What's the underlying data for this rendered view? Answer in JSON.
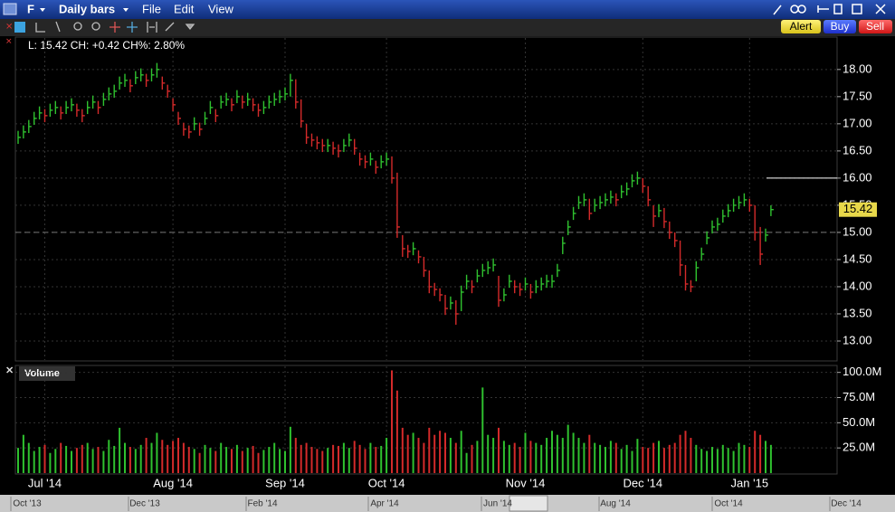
{
  "window": {
    "symbol": "F",
    "period": "Daily bars",
    "menu": [
      "File",
      "Edit",
      "View"
    ],
    "buttons": [
      "Alert",
      "Buy",
      "Sell"
    ]
  },
  "info": "L: 15.42 CH: +0.42 CH%: 2.80%",
  "chart_data": [
    {
      "type": "hlc",
      "up_color": "#2fc12f",
      "down_color": "#d42a2a",
      "grid": true,
      "reference_line": 15,
      "level_line": 16,
      "ylim": [
        12.65,
        18.58
      ],
      "yticks": [
        {
          "value": 13,
          "label": "13.00"
        },
        {
          "value": 13.5,
          "label": "13.50"
        },
        {
          "value": 14,
          "label": "14.00"
        },
        {
          "value": 14.5,
          "label": "14.50"
        },
        {
          "value": 15,
          "label": "15.00"
        },
        {
          "value": 15.5,
          "label": "15.50"
        },
        {
          "value": 16,
          "label": "16.00"
        },
        {
          "value": 16.5,
          "label": "16.50"
        },
        {
          "value": 17,
          "label": "17.00"
        },
        {
          "value": 17.5,
          "label": "17.50"
        },
        {
          "value": 18,
          "label": "18.00"
        }
      ],
      "high": [
        16.87,
        16.97,
        17.07,
        17.22,
        17.32,
        17.27,
        17.37,
        17.42,
        17.32,
        17.42,
        17.47,
        17.37,
        17.27,
        17.42,
        17.52,
        17.42,
        17.57,
        17.67,
        17.72,
        17.87,
        17.92,
        17.82,
        17.97,
        18.02,
        17.92,
        18.02,
        18.12,
        17.87,
        17.72,
        17.47,
        17.22,
        17.02,
        16.97,
        17.12,
        17.02,
        17.22,
        17.42,
        17.27,
        17.52,
        17.57,
        17.47,
        17.62,
        17.52,
        17.57,
        17.47,
        17.37,
        17.42,
        17.52,
        17.57,
        17.62,
        17.67,
        17.92,
        17.82,
        17.45,
        17.0,
        16.82,
        16.77,
        16.72,
        16.72,
        16.67,
        16.62,
        16.72,
        16.82,
        16.72,
        16.47,
        16.42,
        16.47,
        16.32,
        16.42,
        16.47,
        16.4,
        16.1,
        14.95,
        14.77,
        14.82,
        14.67,
        14.55,
        14.3,
        14.07,
        13.97,
        13.85,
        13.82,
        13.75,
        14.02,
        14.22,
        14.12,
        14.32,
        14.42,
        14.47,
        14.52,
        14.2,
        13.97,
        14.22,
        14.12,
        14.07,
        14.17,
        14.05,
        14.12,
        14.17,
        14.22,
        14.22,
        14.42,
        14.92,
        15.22,
        15.47,
        15.67,
        15.72,
        15.62,
        15.62,
        15.67,
        15.72,
        15.77,
        15.72,
        15.87,
        15.92,
        16.07,
        16.12,
        16.0,
        15.85,
        15.5,
        15.52,
        15.45,
        15.2,
        15.0,
        14.85,
        14.4,
        14.12,
        14.47,
        14.72,
        15.02,
        15.22,
        15.27,
        15.42,
        15.52,
        15.62,
        15.67,
        15.72,
        15.62,
        15.5,
        15.1,
        15.07,
        15.5
      ],
      "low": [
        16.63,
        16.73,
        16.83,
        16.98,
        17.08,
        17.03,
        17.13,
        17.18,
        17.08,
        17.18,
        17.23,
        17.13,
        17.03,
        17.18,
        17.28,
        17.18,
        17.33,
        17.43,
        17.48,
        17.63,
        17.68,
        17.58,
        17.73,
        17.78,
        17.68,
        17.78,
        17.85,
        17.63,
        17.48,
        17.23,
        16.98,
        16.78,
        16.73,
        16.88,
        16.78,
        16.98,
        17.18,
        17.03,
        17.28,
        17.33,
        17.23,
        17.38,
        17.28,
        17.33,
        17.23,
        17.13,
        17.18,
        17.28,
        17.33,
        17.38,
        17.43,
        17.5,
        17.28,
        16.93,
        16.63,
        16.58,
        16.53,
        16.48,
        16.48,
        16.43,
        16.38,
        16.48,
        16.58,
        16.43,
        16.23,
        16.18,
        16.23,
        16.08,
        16.18,
        16.23,
        15.9,
        14.9,
        14.55,
        14.53,
        14.58,
        14.43,
        14.18,
        13.88,
        13.83,
        13.73,
        13.48,
        13.58,
        13.3,
        13.55,
        13.95,
        13.88,
        14.08,
        14.18,
        14.23,
        14.28,
        13.63,
        13.73,
        13.98,
        13.88,
        13.83,
        13.93,
        13.78,
        13.88,
        13.93,
        13.98,
        13.98,
        14.18,
        14.6,
        14.95,
        15.23,
        15.43,
        15.48,
        15.23,
        15.38,
        15.43,
        15.48,
        15.53,
        15.48,
        15.63,
        15.68,
        15.83,
        15.88,
        15.73,
        15.48,
        15.1,
        15.28,
        15.08,
        14.88,
        14.73,
        14.2,
        13.93,
        13.9,
        14.1,
        14.48,
        14.78,
        14.98,
        15.03,
        15.18,
        15.28,
        15.38,
        15.43,
        15.48,
        15.38,
        14.85,
        14.4,
        14.83,
        15.3
      ],
      "close": [
        16.75,
        16.85,
        16.95,
        17.1,
        17.2,
        17.15,
        17.25,
        17.3,
        17.2,
        17.3,
        17.35,
        17.25,
        17.15,
        17.3,
        17.4,
        17.3,
        17.45,
        17.55,
        17.6,
        17.75,
        17.8,
        17.7,
        17.85,
        17.9,
        17.8,
        17.9,
        18.0,
        17.75,
        17.6,
        17.35,
        17.1,
        16.9,
        16.85,
        17.0,
        16.9,
        17.1,
        17.3,
        17.15,
        17.4,
        17.45,
        17.35,
        17.5,
        17.4,
        17.45,
        17.35,
        17.25,
        17.3,
        17.4,
        17.45,
        17.5,
        17.55,
        17.8,
        17.4,
        17.05,
        16.75,
        16.7,
        16.65,
        16.6,
        16.6,
        16.55,
        16.5,
        16.6,
        16.7,
        16.55,
        16.35,
        16.3,
        16.35,
        16.2,
        16.3,
        16.35,
        16.0,
        15.1,
        14.7,
        14.65,
        14.7,
        14.55,
        14.3,
        14.0,
        13.95,
        13.85,
        13.6,
        13.7,
        13.5,
        13.9,
        14.1,
        14.0,
        14.2,
        14.3,
        14.35,
        14.4,
        13.75,
        13.85,
        14.1,
        14.0,
        13.95,
        14.05,
        13.9,
        14.0,
        14.05,
        14.1,
        14.1,
        14.3,
        14.8,
        15.1,
        15.35,
        15.55,
        15.6,
        15.35,
        15.5,
        15.55,
        15.6,
        15.65,
        15.6,
        15.75,
        15.8,
        15.95,
        16.0,
        15.85,
        15.6,
        15.3,
        15.4,
        15.2,
        15.0,
        14.85,
        14.4,
        14.05,
        14.0,
        14.35,
        14.6,
        14.9,
        15.1,
        15.15,
        15.3,
        15.4,
        15.5,
        15.55,
        15.6,
        15.5,
        15.0,
        14.6,
        14.95,
        15.42
      ]
    },
    {
      "type": "bar",
      "title": "Volume",
      "grid": true,
      "ylim": [
        0,
        106000000.0
      ],
      "yticks": [
        {
          "value": 25000000.0,
          "label": "25.0M"
        },
        {
          "value": 50000000.0,
          "label": "50.0M"
        },
        {
          "value": 75000000.0,
          "label": "75.0M"
        },
        {
          "value": 100000000.0,
          "label": "100.0M"
        }
      ],
      "categories": [
        null,
        null,
        null,
        null,
        null,
        "Jul '14",
        null,
        null,
        null,
        null,
        null,
        null,
        null,
        null,
        null,
        null,
        null,
        null,
        null,
        null,
        null,
        null,
        null,
        null,
        null,
        null,
        null,
        null,
        null,
        "Aug '14",
        null,
        null,
        null,
        null,
        null,
        null,
        null,
        null,
        null,
        null,
        null,
        null,
        null,
        null,
        null,
        null,
        null,
        null,
        null,
        null,
        "Sep '14",
        null,
        null,
        null,
        null,
        null,
        null,
        null,
        null,
        null,
        null,
        null,
        null,
        null,
        null,
        null,
        null,
        null,
        null,
        "Oct '14",
        null,
        null,
        null,
        null,
        null,
        null,
        null,
        null,
        null,
        null,
        null,
        null,
        null,
        null,
        null,
        null,
        null,
        null,
        null,
        null,
        null,
        null,
        null,
        null,
        null,
        "Nov '14",
        null,
        null,
        null,
        null,
        null,
        null,
        null,
        null,
        null,
        null,
        null,
        null,
        null,
        null,
        null,
        null,
        null,
        null,
        null,
        null,
        null,
        "Dec '14",
        null,
        null,
        null,
        null,
        null,
        null,
        null,
        null,
        null,
        null,
        null,
        null,
        null,
        null,
        null,
        null,
        null,
        null,
        null,
        "Jan '15",
        null,
        null,
        null,
        null
      ],
      "values": [
        25000000.0,
        38000000.0,
        30000000.0,
        22000000.0,
        26000000.0,
        28000000.0,
        20000000.0,
        24000000.0,
        30000000.0,
        27000000.0,
        22000000.0,
        25000000.0,
        28000000.0,
        30000000.0,
        24000000.0,
        26000000.0,
        22000000.0,
        33000000.0,
        27000000.0,
        45000000.0,
        30000000.0,
        26000000.0,
        24000000.0,
        28000000.0,
        35000000.0,
        30000000.0,
        40000000.0,
        33000000.0,
        28000000.0,
        32000000.0,
        35000000.0,
        30000000.0,
        26000000.0,
        24000000.0,
        20000000.0,
        28000000.0,
        25000000.0,
        22000000.0,
        30000000.0,
        26000000.0,
        24000000.0,
        28000000.0,
        22000000.0,
        25000000.0,
        27000000.0,
        20000000.0,
        23000000.0,
        26000000.0,
        30000000.0,
        24000000.0,
        22000000.0,
        46000000.0,
        35000000.0,
        28000000.0,
        30000000.0,
        26000000.0,
        24000000.0,
        22000000.0,
        25000000.0,
        28000000.0,
        27000000.0,
        30000000.0,
        25000000.0,
        32000000.0,
        28000000.0,
        24000000.0,
        30000000.0,
        26000000.0,
        27000000.0,
        35000000.0,
        102000000.0,
        82000000.0,
        45000000.0,
        38000000.0,
        40000000.0,
        35000000.0,
        30000000.0,
        45000000.0,
        38000000.0,
        42000000.0,
        40000000.0,
        35000000.0,
        30000000.0,
        42000000.0,
        20000000.0,
        28000000.0,
        32000000.0,
        85000000.0,
        38000000.0,
        35000000.0,
        45000000.0,
        32000000.0,
        28000000.0,
        30000000.0,
        26000000.0,
        40000000.0,
        32000000.0,
        30000000.0,
        28000000.0,
        35000000.0,
        42000000.0,
        38000000.0,
        35000000.0,
        48000000.0,
        40000000.0,
        35000000.0,
        30000000.0,
        38000000.0,
        30000000.0,
        28000000.0,
        26000000.0,
        32000000.0,
        30000000.0,
        24000000.0,
        28000000.0,
        22000000.0,
        34000000.0,
        26000000.0,
        25000000.0,
        30000000.0,
        32000000.0,
        25000000.0,
        28000000.0,
        30000000.0,
        38000000.0,
        42000000.0,
        35000000.0,
        28000000.0,
        24000000.0,
        22000000.0,
        26000000.0,
        24000000.0,
        28000000.0,
        25000000.0,
        22000000.0,
        30000000.0,
        28000000.0,
        26000000.0,
        42000000.0,
        38000000.0,
        32000000.0,
        28000000.0
      ]
    }
  ],
  "navigator": [
    "Oct '13",
    "Dec '13",
    "Feb '14",
    "Apr '14",
    "Jun '14",
    "Aug '14",
    "Oct '14",
    "Dec '14"
  ]
}
